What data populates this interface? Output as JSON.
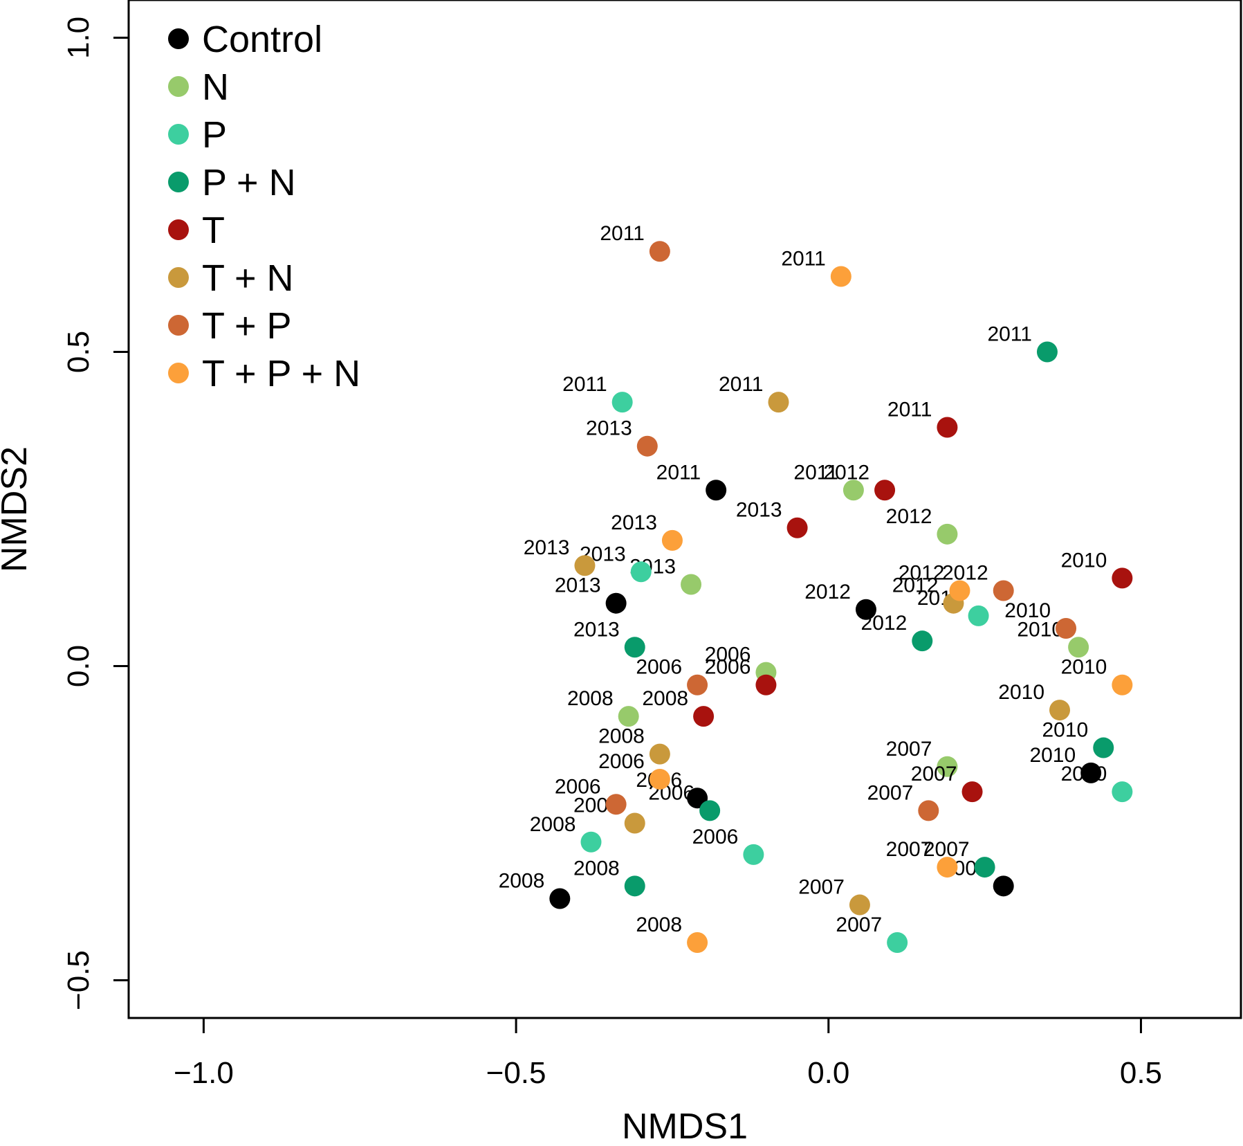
{
  "chart_data": {
    "type": "scatter",
    "xlabel": "NMDS1",
    "ylabel": "NMDS2",
    "xlim": [
      -1.12,
      0.66
    ],
    "ylim": [
      -0.56,
      1.06
    ],
    "x_ticks": [
      -1.0,
      -0.5,
      0.0,
      0.5
    ],
    "y_ticks": [
      -0.5,
      0.0,
      0.5,
      1.0
    ],
    "x_tick_labels": [
      "−1.0",
      "−0.5",
      "0.0",
      "0.5"
    ],
    "y_tick_labels": [
      "−0.5",
      "0.0",
      "0.5",
      "1.0"
    ],
    "grid": false,
    "legend_position": "top-left",
    "series": [
      {
        "name": "Control",
        "color": "#000000",
        "points": [
          {
            "x": -0.18,
            "y": 0.28,
            "label": "2011"
          },
          {
            "x": 0.06,
            "y": 0.09,
            "label": "2012"
          },
          {
            "x": -0.34,
            "y": 0.1,
            "label": "2013"
          },
          {
            "x": -0.21,
            "y": -0.21,
            "label": "2006"
          },
          {
            "x": -0.43,
            "y": -0.37,
            "label": "2008"
          },
          {
            "x": 0.28,
            "y": -0.35,
            "label": "2007"
          },
          {
            "x": 0.42,
            "y": -0.17,
            "label": "2010"
          }
        ]
      },
      {
        "name": "N",
        "color": "#97CA6B",
        "points": [
          {
            "x": 0.04,
            "y": 0.28,
            "label": "2011"
          },
          {
            "x": 0.19,
            "y": 0.21,
            "label": "2012"
          },
          {
            "x": -0.22,
            "y": 0.13,
            "label": "2013"
          },
          {
            "x": -0.1,
            "y": -0.01,
            "label": "2006"
          },
          {
            "x": -0.32,
            "y": -0.08,
            "label": "2008"
          },
          {
            "x": 0.19,
            "y": -0.16,
            "label": "2007"
          },
          {
            "x": 0.4,
            "y": 0.03,
            "label": "2010"
          }
        ]
      },
      {
        "name": "P",
        "color": "#3DCF9F",
        "points": [
          {
            "x": -0.33,
            "y": 0.42,
            "label": "2011"
          },
          {
            "x": 0.24,
            "y": 0.08,
            "label": "2012"
          },
          {
            "x": -0.3,
            "y": 0.15,
            "label": "2013"
          },
          {
            "x": -0.12,
            "y": -0.3,
            "label": "2006"
          },
          {
            "x": -0.38,
            "y": -0.28,
            "label": "2008"
          },
          {
            "x": 0.11,
            "y": -0.44,
            "label": "2007"
          },
          {
            "x": 0.47,
            "y": -0.2,
            "label": "2010"
          }
        ]
      },
      {
        "name": "P + N",
        "color": "#099B6B",
        "points": [
          {
            "x": 0.35,
            "y": 0.5,
            "label": "2011"
          },
          {
            "x": 0.15,
            "y": 0.04,
            "label": "2012"
          },
          {
            "x": -0.31,
            "y": 0.03,
            "label": "2013"
          },
          {
            "x": -0.19,
            "y": -0.23,
            "label": "2006"
          },
          {
            "x": -0.31,
            "y": -0.35,
            "label": "2008"
          },
          {
            "x": 0.25,
            "y": -0.32,
            "label": "2007"
          },
          {
            "x": 0.44,
            "y": -0.13,
            "label": "2010"
          }
        ]
      },
      {
        "name": "T",
        "color": "#A8120E",
        "points": [
          {
            "x": 0.19,
            "y": 0.38,
            "label": "2011"
          },
          {
            "x": 0.09,
            "y": 0.28,
            "label": "2012"
          },
          {
            "x": -0.05,
            "y": 0.22,
            "label": "2013"
          },
          {
            "x": -0.1,
            "y": -0.03,
            "label": "2006"
          },
          {
            "x": -0.2,
            "y": -0.08,
            "label": "2008"
          },
          {
            "x": 0.23,
            "y": -0.2,
            "label": "2007"
          },
          {
            "x": 0.47,
            "y": 0.14,
            "label": "2010"
          }
        ]
      },
      {
        "name": "T + N",
        "color": "#C9993C",
        "points": [
          {
            "x": -0.08,
            "y": 0.42,
            "label": "2011"
          },
          {
            "x": 0.2,
            "y": 0.1,
            "label": "2012"
          },
          {
            "x": -0.39,
            "y": 0.16,
            "label": "2013"
          },
          {
            "x": -0.31,
            "y": -0.25,
            "label": "2006"
          },
          {
            "x": -0.27,
            "y": -0.14,
            "label": "2008"
          },
          {
            "x": 0.05,
            "y": -0.38,
            "label": "2007"
          },
          {
            "x": 0.37,
            "y": -0.07,
            "label": "2010"
          }
        ]
      },
      {
        "name": "T + P",
        "color": "#CD6734",
        "points": [
          {
            "x": -0.27,
            "y": 0.66,
            "label": "2011"
          },
          {
            "x": 0.28,
            "y": 0.12,
            "label": "2012"
          },
          {
            "x": -0.29,
            "y": 0.35,
            "label": "2013"
          },
          {
            "x": -0.21,
            "y": -0.03,
            "label": "2006"
          },
          {
            "x": -0.34,
            "y": -0.22,
            "label": "2006"
          },
          {
            "x": 0.16,
            "y": -0.23,
            "label": "2007"
          },
          {
            "x": 0.38,
            "y": 0.06,
            "label": "2010"
          }
        ]
      },
      {
        "name": "T + P + N",
        "color": "#FCA03A",
        "points": [
          {
            "x": 0.02,
            "y": 0.62,
            "label": "2011"
          },
          {
            "x": 0.21,
            "y": 0.12,
            "label": "2012"
          },
          {
            "x": -0.25,
            "y": 0.2,
            "label": "2013"
          },
          {
            "x": -0.27,
            "y": -0.18,
            "label": "2006"
          },
          {
            "x": -0.21,
            "y": -0.44,
            "label": "2008"
          },
          {
            "x": 0.19,
            "y": -0.32,
            "label": "2007"
          },
          {
            "x": 0.47,
            "y": -0.03,
            "label": "2010"
          }
        ]
      }
    ]
  }
}
